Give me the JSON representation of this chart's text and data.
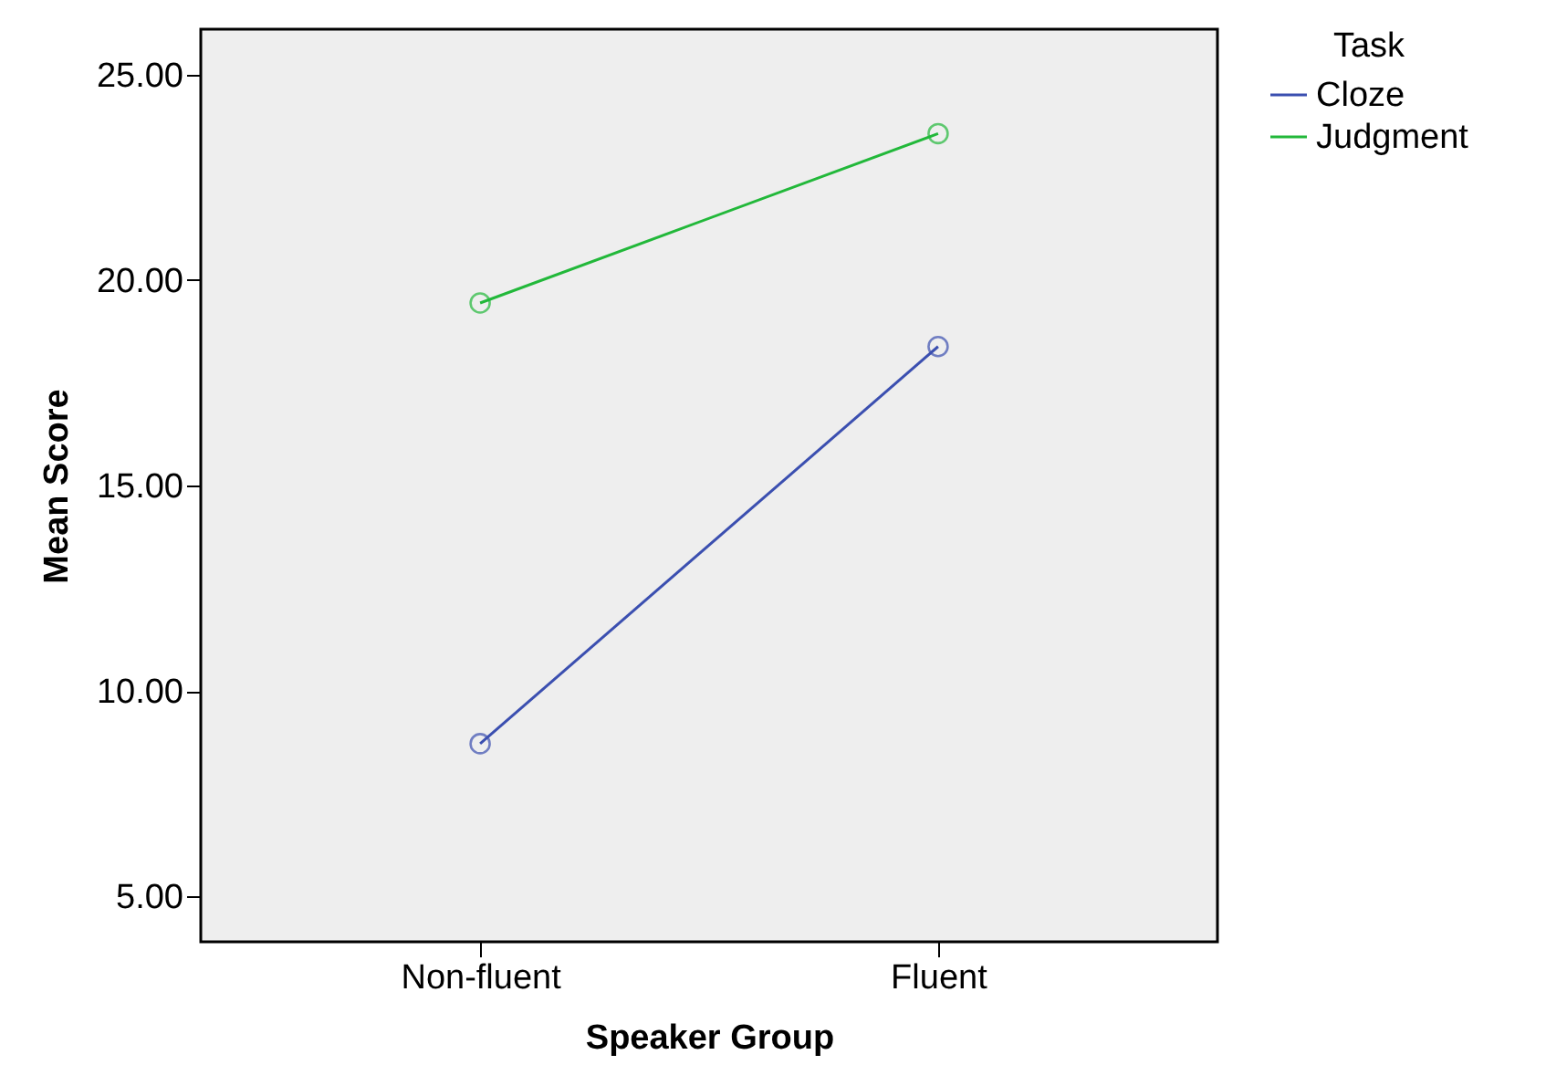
{
  "chart_data": {
    "type": "line",
    "xlabel": "Speaker Group",
    "ylabel": "Mean Score",
    "legend_title": "Task",
    "categories": [
      "Non-fluent",
      "Fluent"
    ],
    "series": [
      {
        "name": "Cloze",
        "color": "#3b4fb0",
        "values": [
          8.72,
          18.38
        ]
      },
      {
        "name": "Judgment",
        "color": "#22b83a",
        "values": [
          19.44,
          23.56
        ]
      }
    ],
    "ylim": [
      3.9,
      26.1
    ],
    "yticks": [
      {
        "value": 5,
        "label": "5.00"
      },
      {
        "value": 10,
        "label": "10.00"
      },
      {
        "value": 15,
        "label": "15.00"
      },
      {
        "value": 20,
        "label": "20.00"
      },
      {
        "value": 25,
        "label": "25.00"
      }
    ],
    "marker": "circle",
    "line_style": "solid",
    "legend": "top right"
  }
}
